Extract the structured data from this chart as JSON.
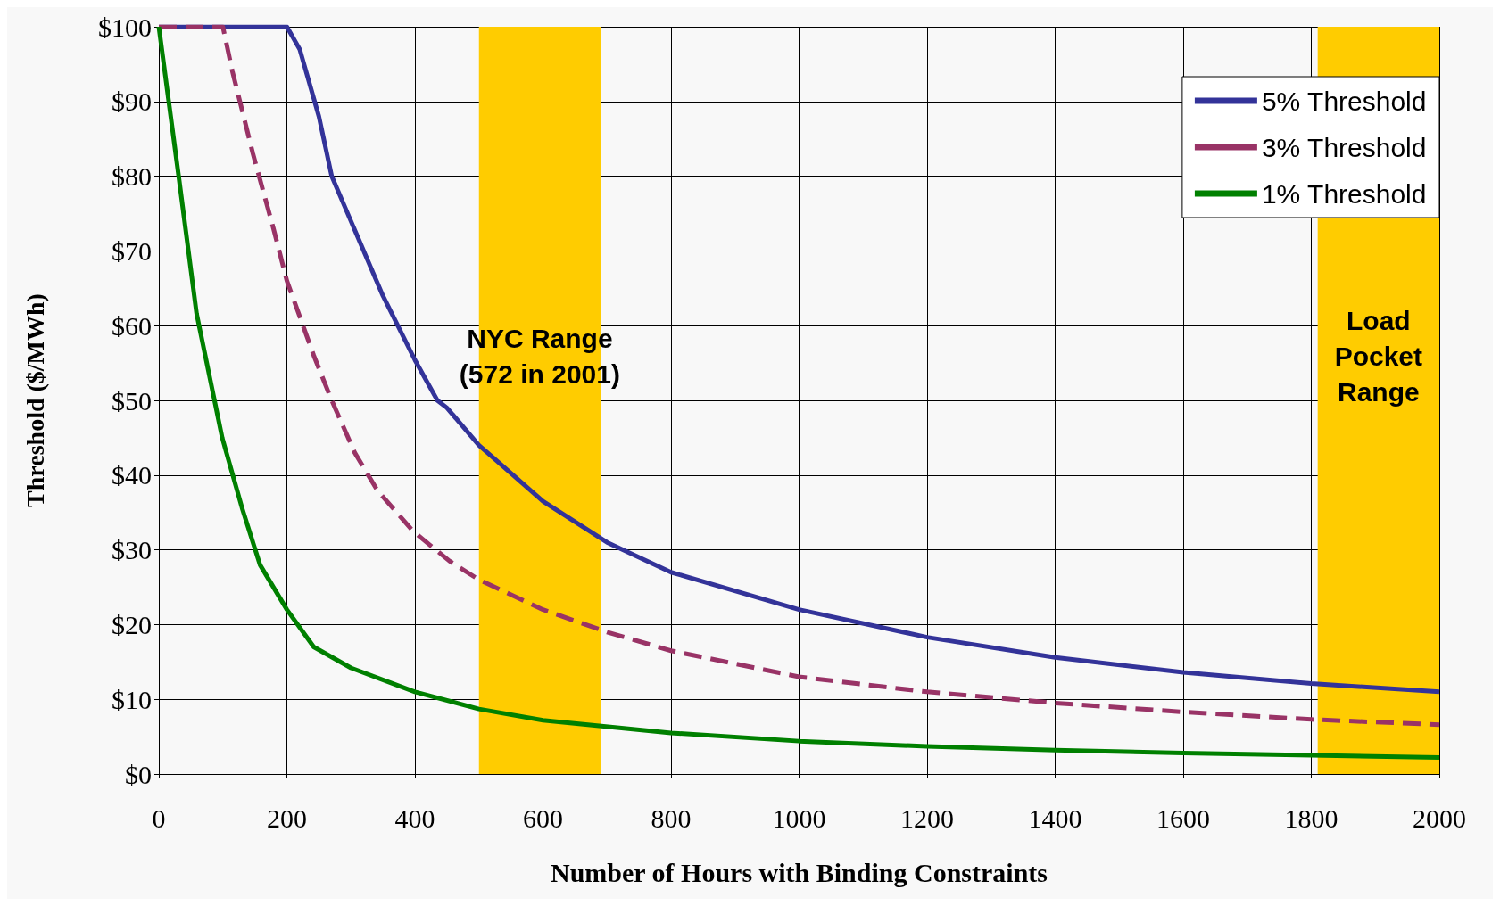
{
  "chart_data": {
    "type": "line",
    "xlabel": "Number of Hours with Binding Constraints",
    "ylabel": "Threshold ($/MWh)",
    "xlim": [
      0,
      2000
    ],
    "xticks": [
      0,
      200,
      400,
      600,
      800,
      1000,
      1200,
      1400,
      1600,
      1800,
      2000
    ],
    "ylim": [
      0,
      100
    ],
    "yticks": [
      {
        "value": 0,
        "label": "$0"
      },
      {
        "value": 10,
        "label": "$10"
      },
      {
        "value": 20,
        "label": "$20"
      },
      {
        "value": 30,
        "label": "$30"
      },
      {
        "value": 40,
        "label": "$40"
      },
      {
        "value": 50,
        "label": "$50"
      },
      {
        "value": 60,
        "label": "$60"
      },
      {
        "value": 70,
        "label": "$70"
      },
      {
        "value": 80,
        "label": "$80"
      },
      {
        "value": 90,
        "label": "$90"
      },
      {
        "value": 100,
        "label": "$100"
      }
    ],
    "grid": true,
    "legend": "top right",
    "marker": "none",
    "bands": [
      {
        "axis": "x",
        "from": 500,
        "to": 690,
        "label": "NYC Range\n(572 in 2001)",
        "color": "#ffcc00"
      },
      {
        "axis": "x",
        "from": 1810,
        "to": 2000,
        "label": "Load\nPocket\nRange",
        "color": "#ffcc00"
      }
    ],
    "series": [
      {
        "name": "5% Threshold",
        "color": "#333399",
        "line_style": "solid",
        "x": [
          0,
          200,
          220,
          250,
          270,
          300,
          350,
          400,
          435,
          450,
          500,
          600,
          700,
          800,
          1000,
          1200,
          1400,
          1600,
          1800,
          2000
        ],
        "values": [
          100,
          100,
          97,
          88,
          80,
          74,
          64,
          55.4,
          50,
          49,
          44,
          36.5,
          31,
          27,
          22,
          18.3,
          15.6,
          13.6,
          12.1,
          11
        ]
      },
      {
        "name": "3% Threshold",
        "color": "#993366",
        "line_style": "dashed",
        "x": [
          0,
          100,
          115,
          147,
          179,
          200,
          242,
          270,
          306,
          341,
          397,
          454,
          500,
          600,
          700,
          800,
          1000,
          1200,
          1400,
          1600,
          1800,
          2000
        ],
        "values": [
          100,
          100,
          94,
          83,
          73,
          66,
          56,
          50,
          43,
          38,
          32.5,
          28.5,
          26,
          22,
          19,
          16.5,
          13,
          11,
          9.5,
          8.3,
          7.3,
          6.6
        ]
      },
      {
        "name": "1% Threshold",
        "color": "#008000",
        "line_style": "solid",
        "x": [
          0,
          31,
          59,
          99,
          130,
          158,
          200,
          242,
          300,
          400,
          500,
          600,
          800,
          1000,
          1200,
          1400,
          1600,
          1800,
          2000
        ],
        "values": [
          100,
          80,
          61.6,
          45,
          35.6,
          28,
          22,
          17,
          14.2,
          11,
          8.7,
          7.2,
          5.5,
          4.4,
          3.7,
          3.2,
          2.8,
          2.5,
          2.2
        ]
      }
    ]
  }
}
